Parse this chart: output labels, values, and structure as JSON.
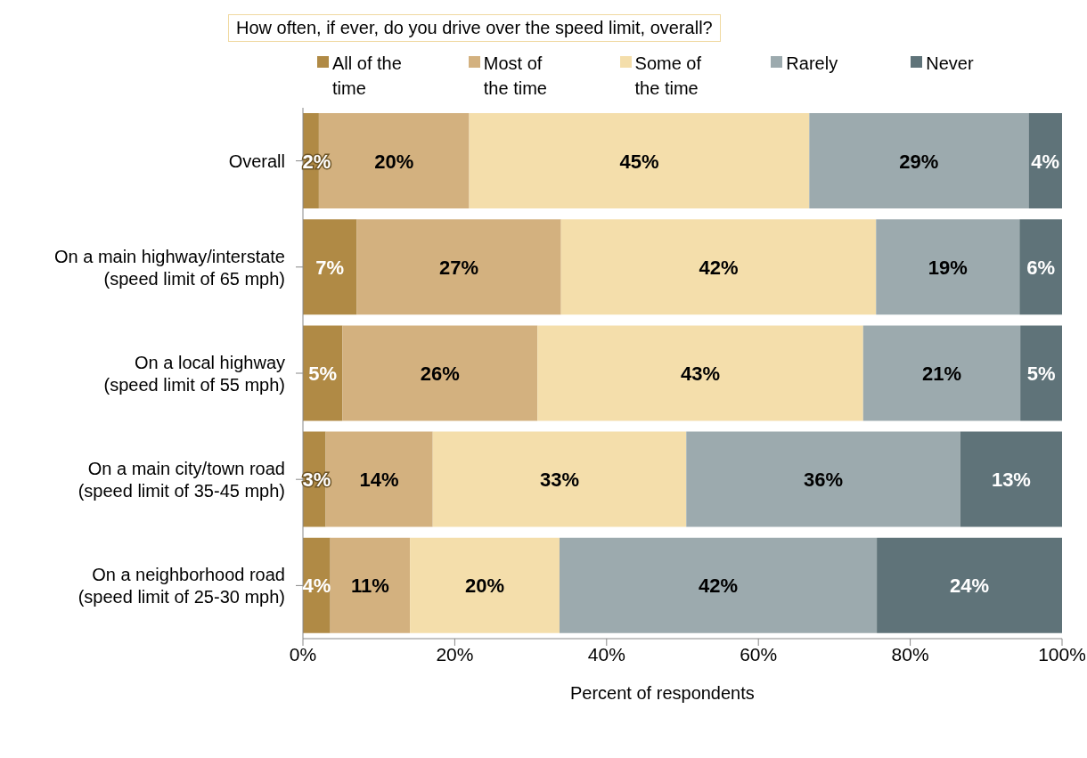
{
  "chart_data": {
    "type": "bar",
    "orientation": "horizontal",
    "stacked": true,
    "title": "How often, if ever, do you drive over the speed limit, overall?",
    "xlabel": "Percent of respondents",
    "categories": [
      "Overall",
      "On a main highway/interstate (speed limit of 65 mph)",
      "On a local highway (speed limit of 55 mph)",
      "On a main city/town road (speed limit of 35-45 mph)",
      "On a neighborhood road (speed limit of 25-30 mph)"
    ],
    "series": [
      {
        "name": "All of the time",
        "color": "#b08a45",
        "values": [
          2.1,
          7.1,
          5.2,
          3.0,
          3.6
        ],
        "value_labels": [
          "2%",
          "7%",
          "5%",
          "3%",
          "4%"
        ]
      },
      {
        "name": "Most of the time",
        "color": "#d3b17f",
        "values": [
          19.8,
          26.9,
          25.7,
          14.1,
          10.5
        ],
        "value_labels": [
          "20%",
          "27%",
          "26%",
          "14%",
          "11%"
        ]
      },
      {
        "name": "Some of the time",
        "color": "#f4deab",
        "values": [
          44.8,
          41.5,
          42.9,
          33.4,
          19.7
        ],
        "value_labels": [
          "45%",
          "42%",
          "43%",
          "33%",
          "20%"
        ]
      },
      {
        "name": "Rarely",
        "color": "#9caaae",
        "values": [
          28.9,
          18.9,
          20.7,
          36.1,
          41.8
        ],
        "value_labels": [
          "29%",
          "19%",
          "21%",
          "36%",
          "42%"
        ]
      },
      {
        "name": "Never",
        "color": "#5f7379",
        "values": [
          4.4,
          5.6,
          5.5,
          13.4,
          24.4
        ],
        "value_labels": [
          "4%",
          "6%",
          "5%",
          "13%",
          "24%"
        ]
      }
    ],
    "xlim": [
      0,
      100
    ],
    "xticks": [
      {
        "value": 0,
        "label": "0%"
      },
      {
        "value": 20,
        "label": "20%"
      },
      {
        "value": 40,
        "label": "40%"
      },
      {
        "value": 60,
        "label": "60%"
      },
      {
        "value": 80,
        "label": "80%"
      },
      {
        "value": 100,
        "label": "100%"
      }
    ],
    "grid": false,
    "legend": "top"
  }
}
